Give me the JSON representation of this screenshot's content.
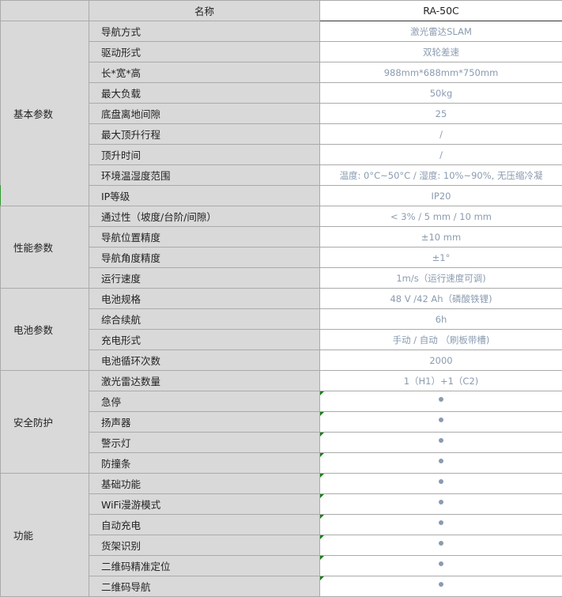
{
  "header": {
    "name_col": "名称",
    "model_col": "RA-50C"
  },
  "colors": {
    "value_text": "#8a9bb0",
    "label_bg": "#d9d9d9",
    "corner_marker": "#1a7f1a"
  },
  "groups": [
    {
      "label": "基本参数",
      "rows": [
        {
          "name": "导航方式",
          "value": "激光雷达SLAM"
        },
        {
          "name": "驱动形式",
          "value": "双轮差速"
        },
        {
          "name": "长*宽*高",
          "value": "988mm*688mm*750mm"
        },
        {
          "name": "最大负载",
          "value": "50kg"
        },
        {
          "name": "底盘离地间隙",
          "value": "25"
        },
        {
          "name": "最大顶升行程",
          "value": "/"
        },
        {
          "name": "顶升时间",
          "value": "/"
        },
        {
          "name": "环境温湿度范围",
          "value": "温度: 0°C~50°C / 湿度: 10%~90%, 无压缩冷凝"
        },
        {
          "name": "IP等级",
          "value": "IP20"
        }
      ]
    },
    {
      "label": "性能参数",
      "rows": [
        {
          "name": "通过性（坡度/台阶/间隙）",
          "value": "< 3% / 5 mm / 10 mm"
        },
        {
          "name": "导航位置精度",
          "value": "±10 mm"
        },
        {
          "name": "导航角度精度",
          "value": "±1°"
        },
        {
          "name": "运行速度",
          "value": "1m/s（运行速度可调)"
        }
      ]
    },
    {
      "label": "电池参数",
      "rows": [
        {
          "name": "电池规格",
          "value": "48 V /42 Ah（磷酸铁锂)"
        },
        {
          "name": "综合续航",
          "value": "6h"
        },
        {
          "name": "充电形式",
          "value": "手动 / 自动 （刷板带槽)"
        },
        {
          "name": "电池循环次数",
          "value": "2000"
        }
      ]
    },
    {
      "label": "安全防护",
      "rows": [
        {
          "name": "激光雷达数量",
          "value": "1（H1）+1（C2)"
        },
        {
          "name": "急停",
          "value": "•"
        },
        {
          "name": "扬声器",
          "value": "•"
        },
        {
          "name": "警示灯",
          "value": "•"
        },
        {
          "name": "防撞条",
          "value": "•"
        }
      ]
    },
    {
      "label": "功能",
      "rows": [
        {
          "name": "基础功能",
          "value": "•"
        },
        {
          "name": "WiFi漫游模式",
          "value": "•"
        },
        {
          "name": "自动充电",
          "value": "•"
        },
        {
          "name": "货架识别",
          "value": "•"
        },
        {
          "name": "二维码精准定位",
          "value": "•"
        },
        {
          "name": "二维码导航",
          "value": "•"
        }
      ]
    }
  ]
}
